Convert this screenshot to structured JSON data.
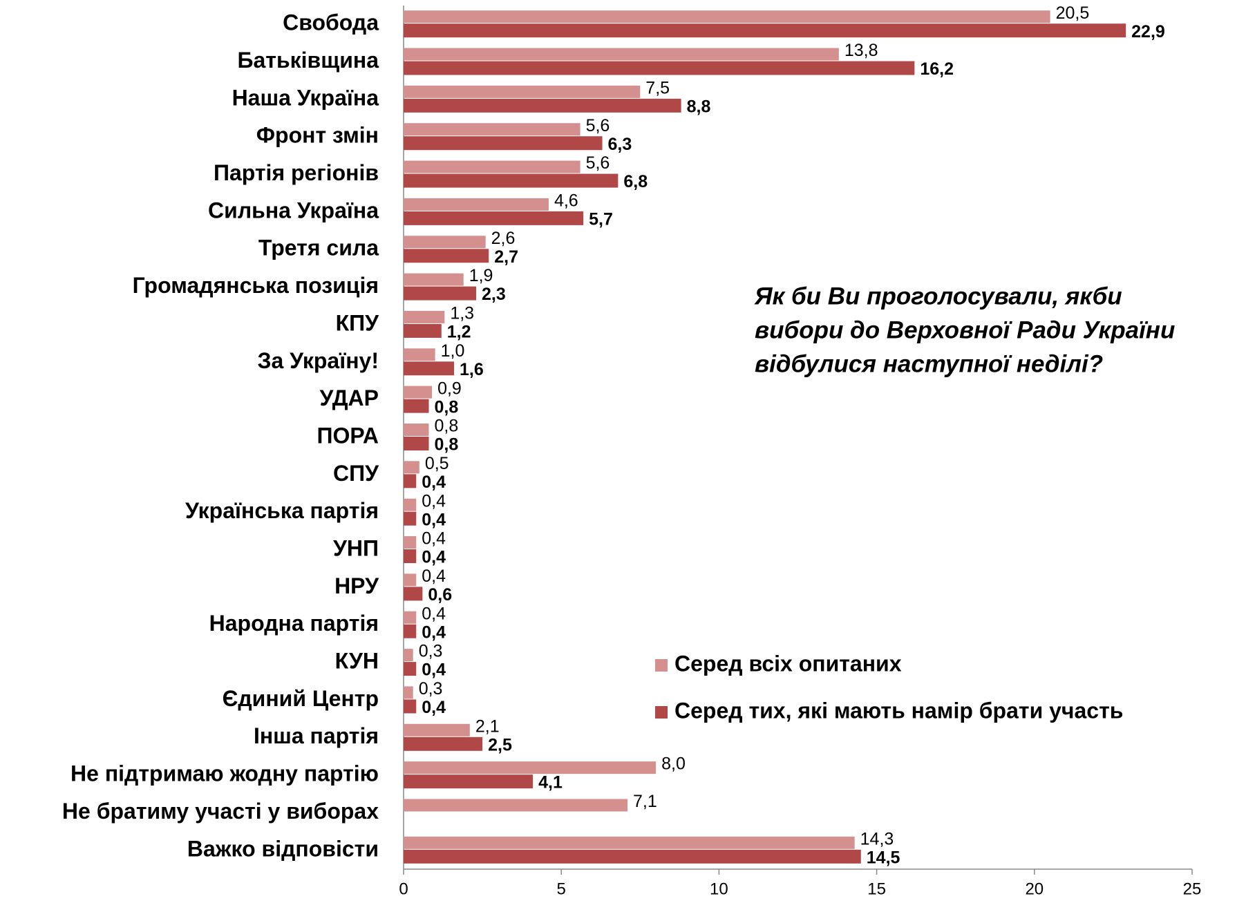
{
  "chart_data": {
    "type": "hbar",
    "title": [
      "Як би Ви проголосували, якби",
      "вибори до Верховної Ради України",
      "відбулися наступної неділі?"
    ],
    "categories": [
      "Свобода",
      "Батьківщина",
      "Наша Україна",
      "Фронт змін",
      "Партія регіонів",
      "Сильна Україна",
      "Третя сила",
      "Громадянська позиція",
      "КПУ",
      "За Україну!",
      "УДАР",
      "ПОРА",
      "СПУ",
      "Українська партія",
      "УНП",
      "НРУ",
      "Народна партія",
      "КУН",
      "Єдиний Центр",
      "Інша партія",
      "Не підтримаю жодну партію",
      "Не братиму участі у виборах",
      "Важко відповісти"
    ],
    "series": [
      {
        "name": "Серед всіх опитаних",
        "color": "#d4908f",
        "values": [
          20.5,
          13.8,
          7.5,
          5.6,
          5.6,
          4.6,
          2.6,
          1.9,
          1.3,
          1.0,
          0.9,
          0.8,
          0.5,
          0.4,
          0.4,
          0.4,
          0.4,
          0.3,
          0.3,
          2.1,
          8.0,
          7.1,
          14.3
        ],
        "value_labels": [
          "20,5",
          "13,8",
          "7,5",
          "5,6",
          "5,6",
          "4,6",
          "2,6",
          "1,9",
          "1,3",
          "1,0",
          "0,9",
          "0,8",
          "0,5",
          "0,4",
          "0,4",
          "0,4",
          "0,4",
          "0,3",
          "0,3",
          "2,1",
          "8,0",
          "7,1",
          "14,3"
        ]
      },
      {
        "name": "Серед тих, які мають намір брати участь",
        "color": "#b04848",
        "values": [
          22.9,
          16.2,
          8.8,
          6.3,
          6.8,
          5.7,
          2.7,
          2.3,
          1.2,
          1.6,
          0.8,
          0.8,
          0.4,
          0.4,
          0.4,
          0.6,
          0.4,
          0.4,
          0.4,
          2.5,
          4.1,
          null,
          14.5
        ],
        "value_labels": [
          "22,9",
          "16,2",
          "8,8",
          "6,3",
          "6,8",
          "5,7",
          "2,7",
          "2,3",
          "1,2",
          "1,6",
          "0,8",
          "0,8",
          "0,4",
          "0,4",
          "0,4",
          "0,6",
          "0,4",
          "0,4",
          "0,4",
          "2,5",
          "4,1",
          null,
          "14,5"
        ]
      }
    ],
    "xlim": [
      0,
      25
    ],
    "xticks": [
      0,
      5,
      10,
      15,
      20,
      25
    ]
  }
}
